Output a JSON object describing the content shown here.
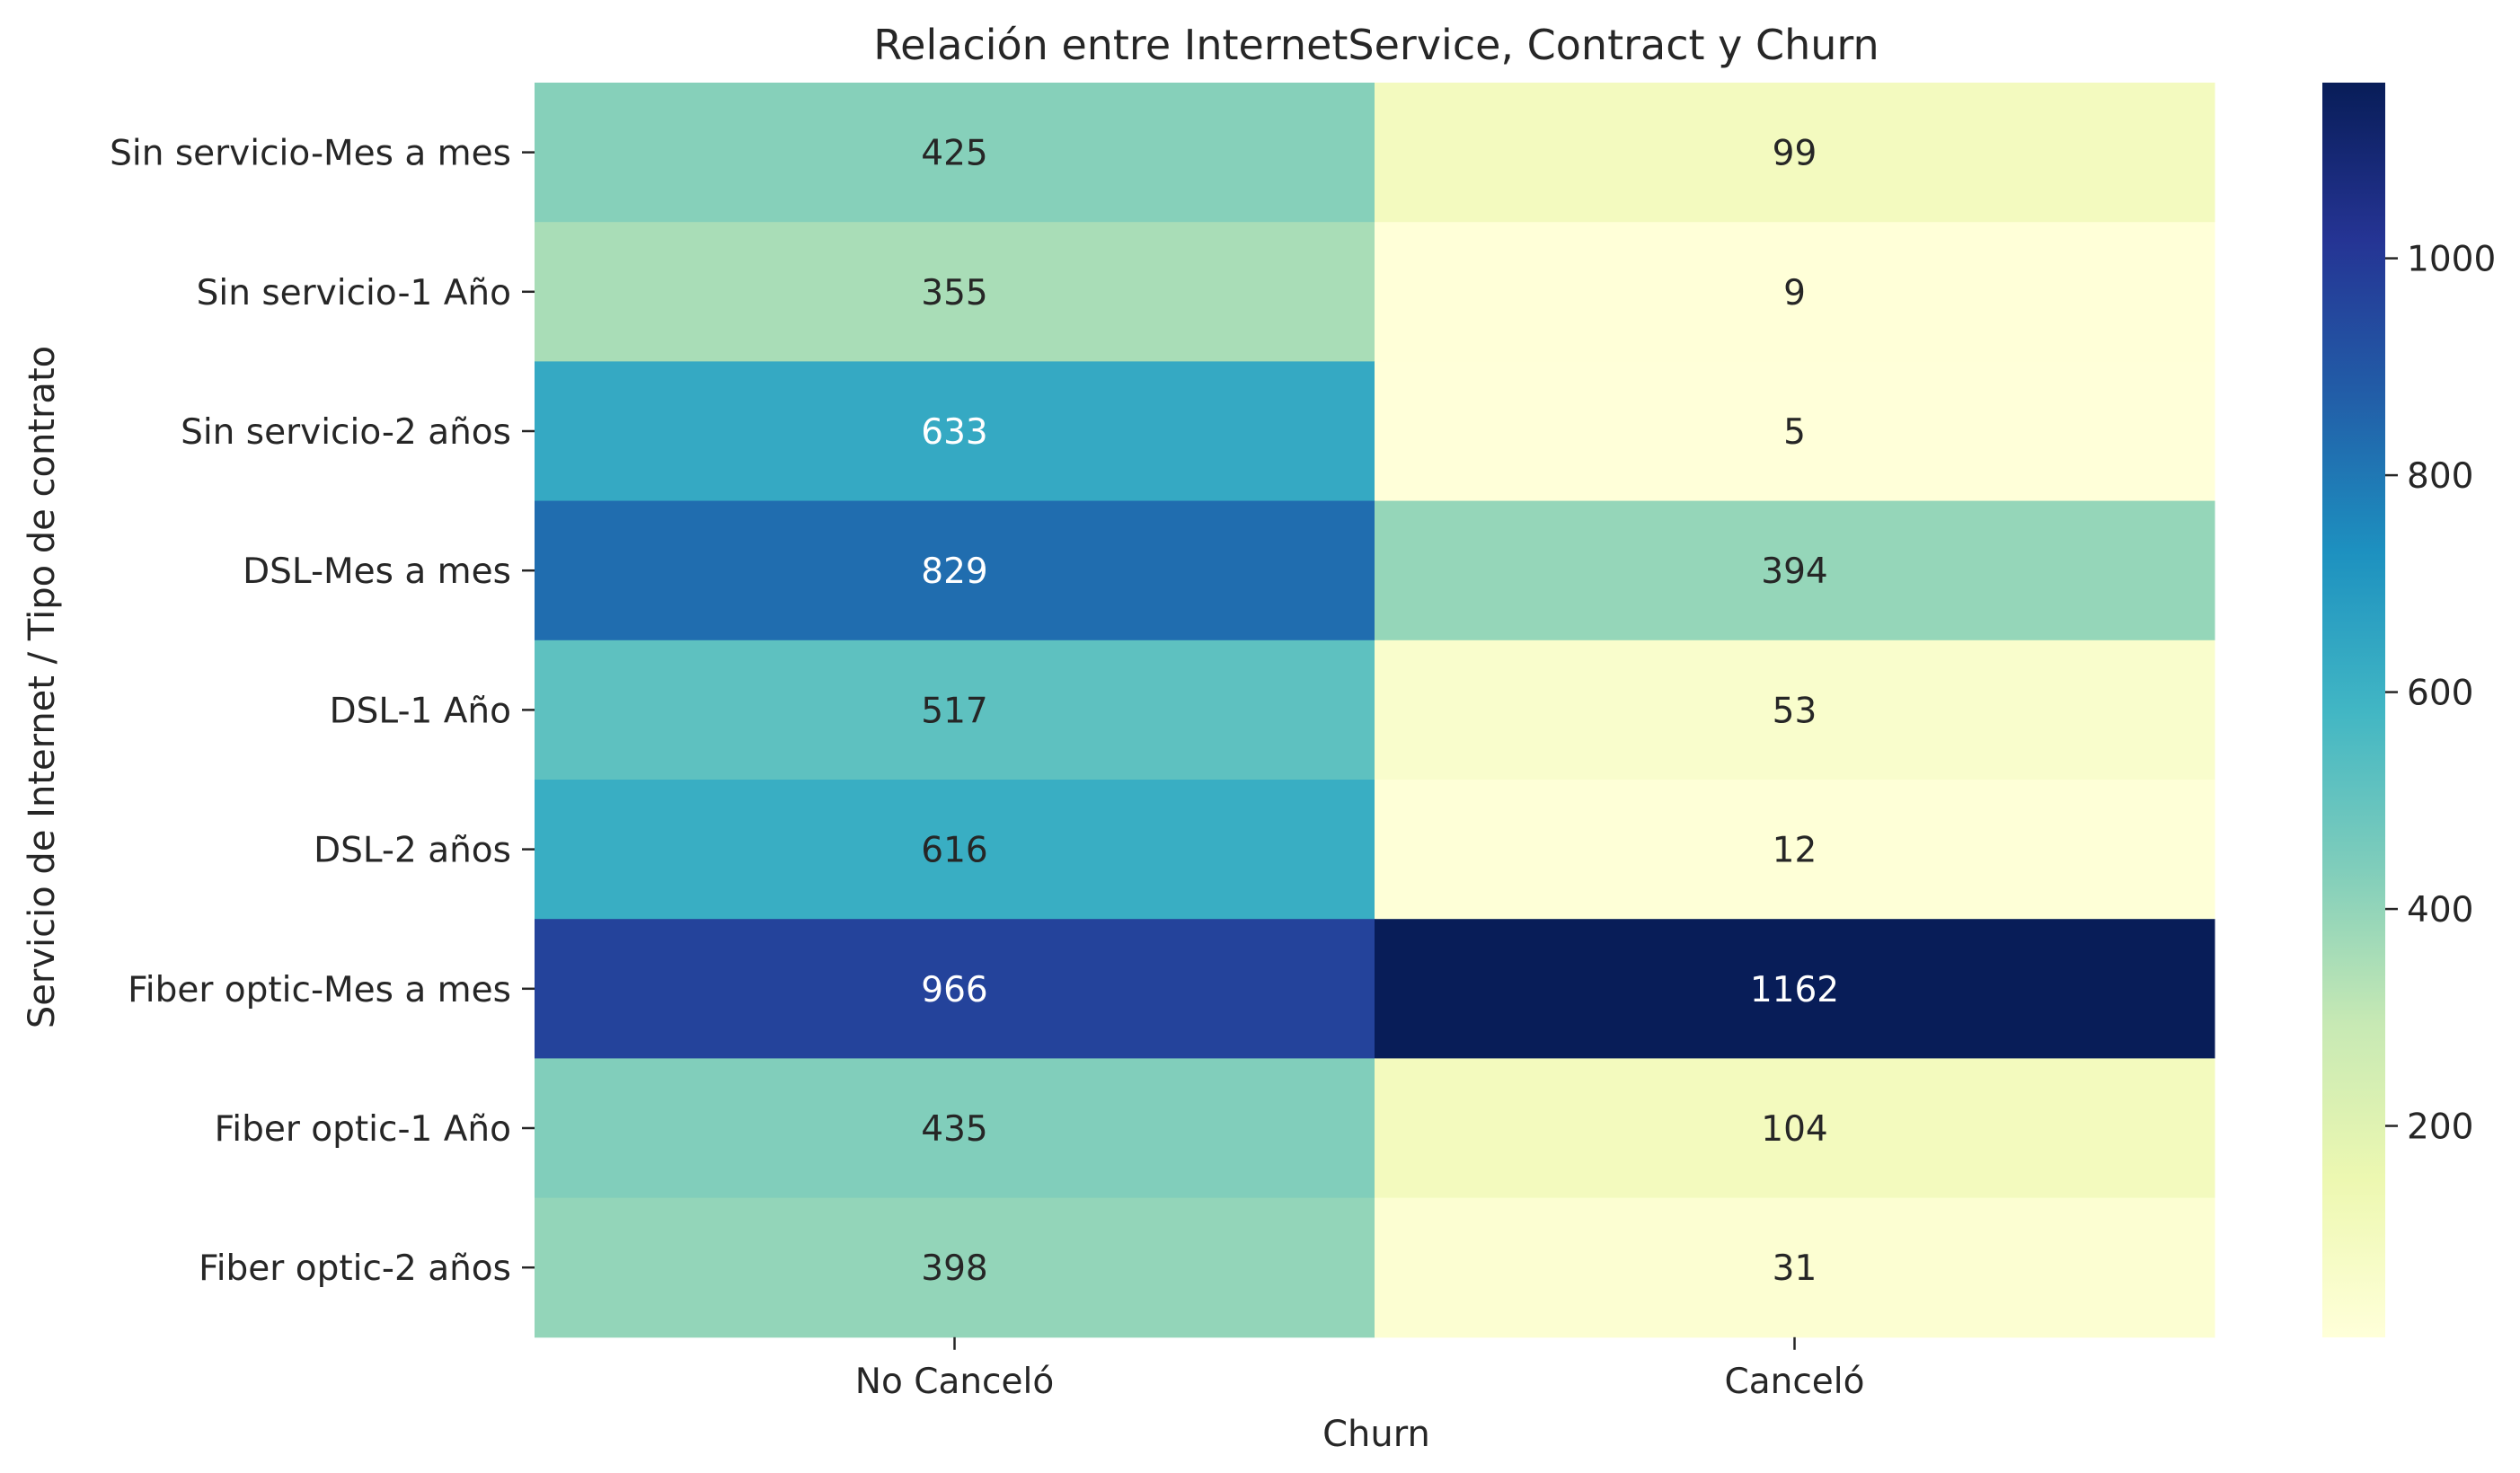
{
  "chart_data": {
    "type": "heatmap",
    "title": "Relación entre InternetService, Contract y Churn",
    "xlabel": "Churn",
    "ylabel": "Servicio de Internet / Tipo de contrato",
    "x_categories": [
      "No Canceló",
      "Canceló"
    ],
    "y_categories": [
      "Sin servicio-Mes a mes",
      "Sin servicio-1 Año",
      "Sin servicio-2 años",
      "DSL-Mes a mes",
      "DSL-1 Año",
      "DSL-2 años",
      "Fiber optic-Mes a mes",
      "Fiber optic-1 Año",
      "Fiber optic-2 años"
    ],
    "values": [
      [
        425,
        99
      ],
      [
        355,
        9
      ],
      [
        633,
        5
      ],
      [
        829,
        394
      ],
      [
        517,
        53
      ],
      [
        616,
        12
      ],
      [
        966,
        1162
      ],
      [
        435,
        104
      ],
      [
        398,
        31
      ]
    ],
    "colormap": "YlGnBu",
    "vmin": 5,
    "vmax": 1162,
    "colorbar_ticks": [
      200,
      400,
      600,
      800,
      1000
    ],
    "annotations": true
  }
}
